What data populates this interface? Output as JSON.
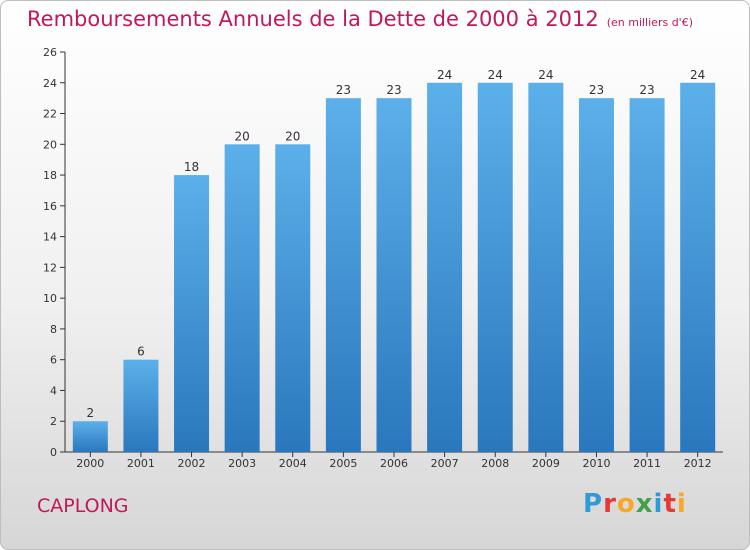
{
  "header": {
    "title": "Remboursements Annuels de la Dette de 2000 à 2012",
    "subtitle": "(en milliers d'€)"
  },
  "footer": {
    "town": "CAPLONG",
    "logo_letters": [
      "P",
      "r",
      "o",
      "x",
      "i",
      "t",
      "i"
    ],
    "logo_colors": [
      "#2e9bd6",
      "#e53935",
      "#f9a825",
      "#43a047",
      "#2e9bd6",
      "#e53935",
      "#f9a825"
    ]
  },
  "chart_data": {
    "type": "bar",
    "title": "Remboursements Annuels de la Dette de 2000 à 2012",
    "subtitle": "(en milliers d'€)",
    "categories": [
      "2000",
      "2001",
      "2002",
      "2003",
      "2004",
      "2005",
      "2006",
      "2007",
      "2008",
      "2009",
      "2010",
      "2011",
      "2012"
    ],
    "values": [
      2,
      6,
      18,
      20,
      20,
      23,
      23,
      24,
      24,
      24,
      23,
      23,
      24
    ],
    "ylim": [
      0,
      26
    ],
    "yticks": [
      0,
      2,
      4,
      6,
      8,
      10,
      12,
      14,
      16,
      18,
      20,
      22,
      24,
      26
    ],
    "grid": false,
    "bar_color": "#3c9ae0",
    "bar_color_dark": "#2a79c0",
    "axis_color": "#333333"
  }
}
